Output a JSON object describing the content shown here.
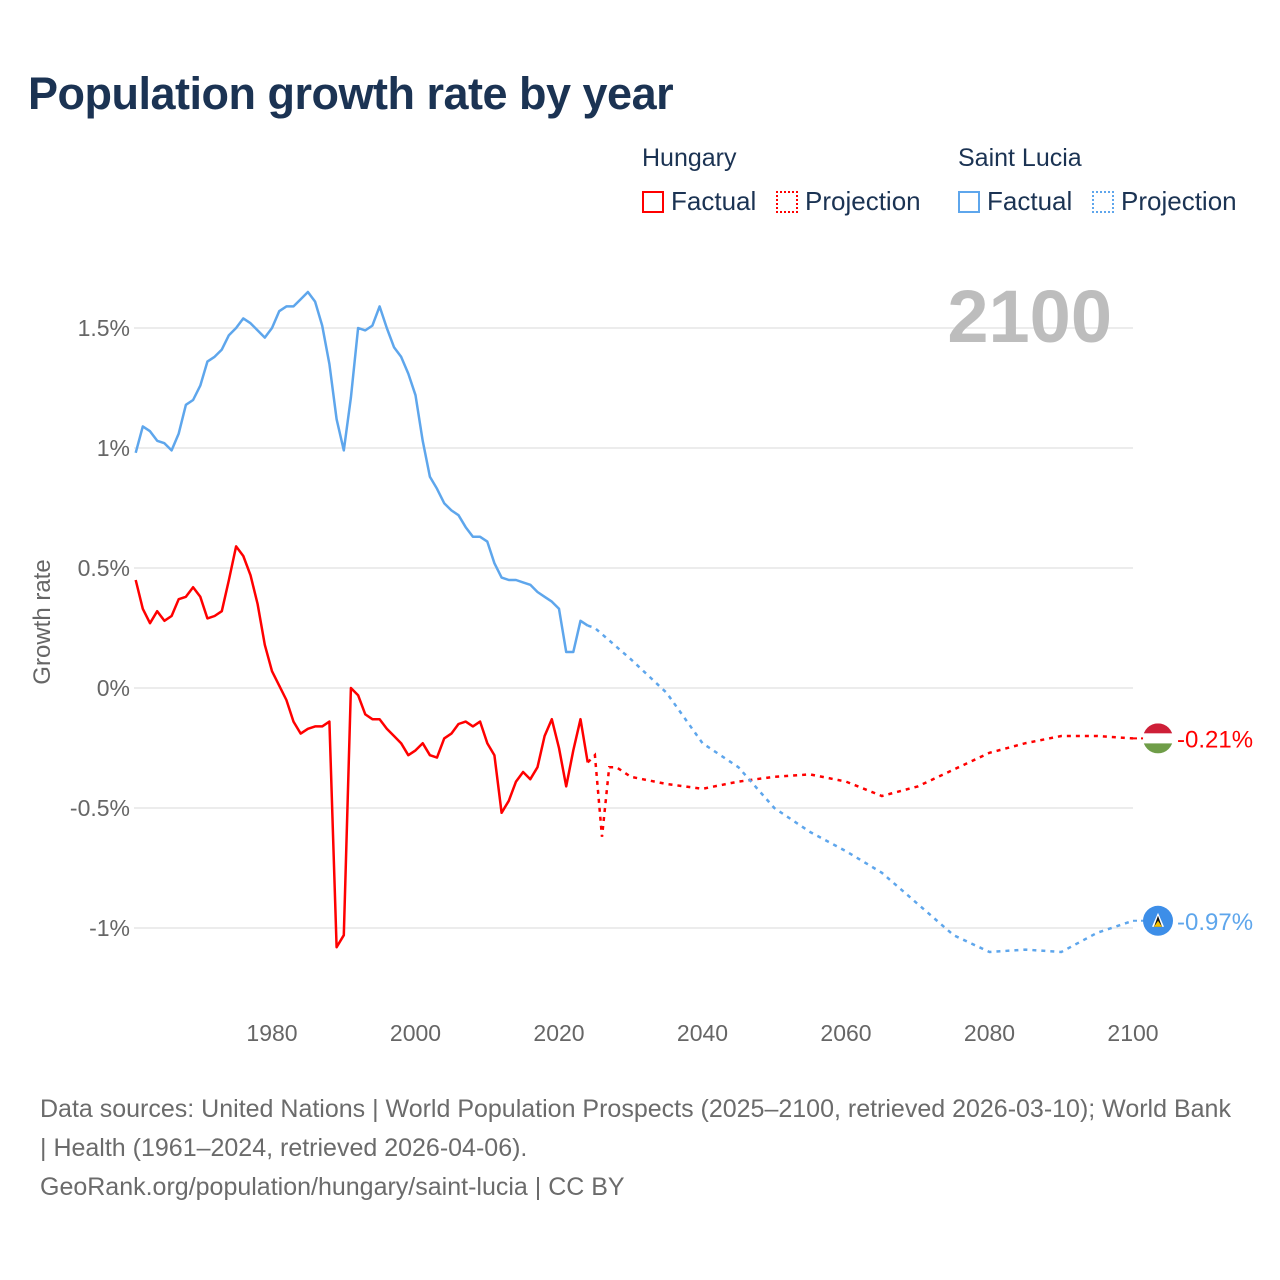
{
  "title": "Population growth rate by year",
  "legend": {
    "groups": [
      {
        "name": "Hungary",
        "color": "#ff0000",
        "factual": "Factual",
        "projection": "Projection"
      },
      {
        "name": "Saint Lucia",
        "color": "#5ea6ec",
        "factual": "Factual",
        "projection": "Projection"
      }
    ]
  },
  "footer": {
    "sources": "Data sources: United Nations | World Population Prospects (2025–2100, retrieved 2026-03-10); World Bank | Health (1961–2024, retrieved 2026-04-06).",
    "credit": "GeoRank.org/population/hungary/saint-lucia | CC BY"
  },
  "chart_data": {
    "type": "line",
    "title": "Population growth rate by year",
    "ylabel": "Growth rate",
    "xlabel": "",
    "year_label": "2100",
    "xlim": [
      1961,
      2100
    ],
    "ylim": [
      -1.2,
      1.7
    ],
    "x_ticks": [
      "1980",
      "2000",
      "2020",
      "2040",
      "2060",
      "2080",
      "2100"
    ],
    "y_ticks": [
      {
        "v": 1.5,
        "label": "1.5%"
      },
      {
        "v": 1,
        "label": "1%"
      },
      {
        "v": 0.5,
        "label": "0.5%"
      },
      {
        "v": 0,
        "label": "0%"
      },
      {
        "v": -0.5,
        "label": "-0.5%"
      },
      {
        "v": -1,
        "label": "-1%"
      }
    ],
    "grid": true,
    "series": [
      {
        "name": "Hungary",
        "color": "#ff0000",
        "end_label": "-0.21%",
        "factual": {
          "x_start": 1961,
          "values": [
            0.45,
            0.33,
            0.27,
            0.32,
            0.28,
            0.3,
            0.37,
            0.38,
            0.42,
            0.38,
            0.29,
            0.3,
            0.32,
            0.45,
            0.59,
            0.55,
            0.47,
            0.35,
            0.18,
            0.07,
            0.01,
            -0.05,
            -0.14,
            -0.19,
            -0.17,
            -0.16,
            -0.16,
            -0.14,
            -1.08,
            -1.03,
            0.0,
            -0.03,
            -0.11,
            -0.13,
            -0.13,
            -0.17,
            -0.2,
            -0.23,
            -0.28,
            -0.26,
            -0.23,
            -0.28,
            -0.29,
            -0.21,
            -0.19,
            -0.15,
            -0.14,
            -0.16,
            -0.14,
            -0.23,
            -0.28,
            -0.52,
            -0.47,
            -0.39,
            -0.35,
            -0.38,
            -0.33,
            -0.2,
            -0.13,
            -0.25,
            -0.41,
            -0.26,
            -0.13,
            -0.31
          ]
        },
        "projection": {
          "x": [
            2024,
            2025,
            2026,
            2027,
            2028,
            2030,
            2035,
            2040,
            2045,
            2050,
            2055,
            2060,
            2065,
            2070,
            2075,
            2080,
            2085,
            2090,
            2095,
            2100
          ],
          "values": [
            -0.31,
            -0.28,
            -0.62,
            -0.33,
            -0.33,
            -0.37,
            -0.4,
            -0.42,
            -0.39,
            -0.37,
            -0.36,
            -0.39,
            -0.45,
            -0.41,
            -0.34,
            -0.27,
            -0.23,
            -0.2,
            -0.2,
            -0.21
          ]
        }
      },
      {
        "name": "Saint Lucia",
        "color": "#5ea6ec",
        "end_label": "-0.97%",
        "factual": {
          "x_start": 1961,
          "values": [
            0.98,
            1.09,
            1.07,
            1.03,
            1.02,
            0.99,
            1.06,
            1.18,
            1.2,
            1.26,
            1.36,
            1.38,
            1.41,
            1.47,
            1.5,
            1.54,
            1.52,
            1.49,
            1.46,
            1.5,
            1.57,
            1.59,
            1.59,
            1.62,
            1.65,
            1.61,
            1.51,
            1.35,
            1.12,
            0.99,
            1.21,
            1.5,
            1.49,
            1.51,
            1.59,
            1.5,
            1.42,
            1.38,
            1.31,
            1.22,
            1.03,
            0.88,
            0.83,
            0.77,
            0.74,
            0.72,
            0.67,
            0.63,
            0.63,
            0.61,
            0.52,
            0.46,
            0.45,
            0.45,
            0.44,
            0.43,
            0.4,
            0.38,
            0.36,
            0.33,
            0.15,
            0.15,
            0.28,
            0.26
          ]
        },
        "projection": {
          "x": [
            2024,
            2025,
            2030,
            2035,
            2040,
            2045,
            2050,
            2055,
            2060,
            2065,
            2070,
            2075,
            2080,
            2085,
            2090,
            2095,
            2100
          ],
          "values": [
            0.26,
            0.25,
            0.12,
            -0.02,
            -0.23,
            -0.33,
            -0.5,
            -0.6,
            -0.68,
            -0.77,
            -0.9,
            -1.03,
            -1.1,
            -1.09,
            -1.1,
            -1.02,
            -0.97
          ]
        }
      }
    ]
  }
}
